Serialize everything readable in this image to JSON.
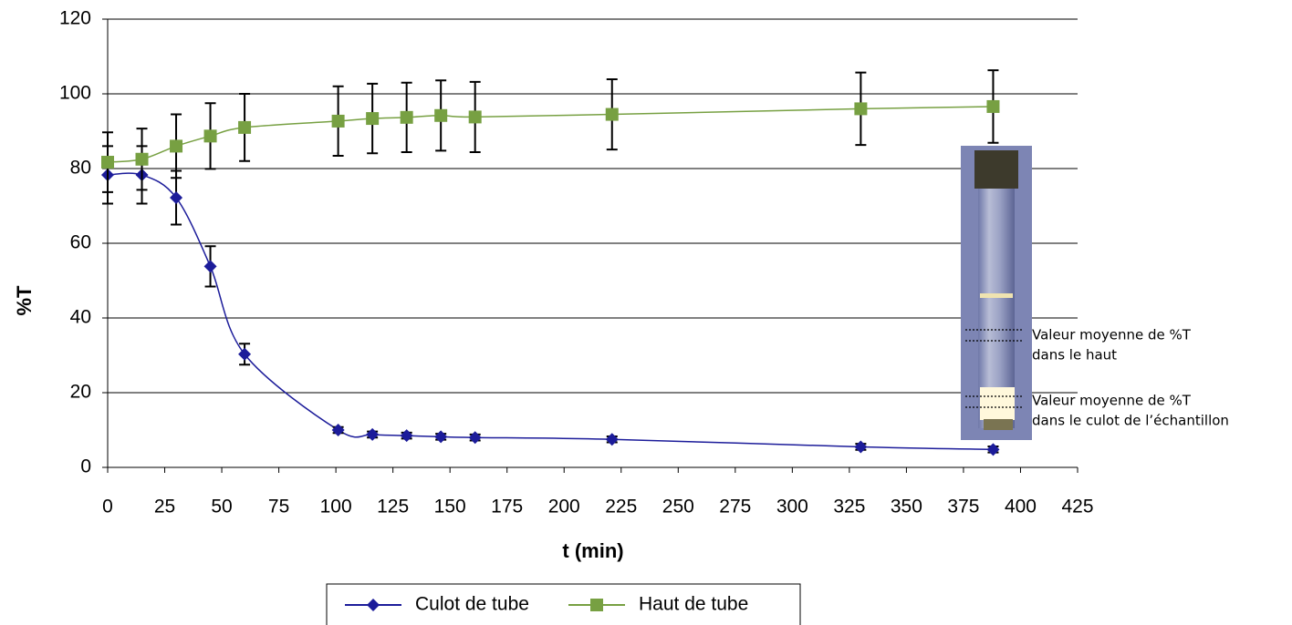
{
  "chart_data": {
    "type": "line",
    "y_label": "%T",
    "x_label": "t (min)",
    "xlim": [
      0,
      425
    ],
    "xticks": [
      0,
      25,
      50,
      75,
      100,
      125,
      150,
      175,
      200,
      225,
      250,
      275,
      300,
      325,
      350,
      375,
      400,
      425
    ],
    "ylim": [
      0,
      120
    ],
    "yticks": [
      0,
      20,
      40,
      60,
      80,
      100,
      120
    ],
    "grid": true,
    "legend": "bottom",
    "series": [
      {
        "name": "Culot de tube",
        "color": "#1c1c9a",
        "marker": "diamond",
        "x": [
          0,
          15,
          30,
          45,
          60,
          101,
          116,
          131,
          146,
          161,
          221,
          330,
          388
        ],
        "values": [
          78.3,
          78.3,
          72.2,
          53.8,
          30.3,
          10,
          8.8,
          8.5,
          8.2,
          8,
          7.5,
          5.5,
          4.8
        ],
        "errors": [
          7.7,
          7.7,
          7.2,
          5.4,
          2.8,
          0.8,
          0.8,
          0.8,
          0.8,
          0.8,
          0.8,
          0.8,
          0.8
        ]
      },
      {
        "name": "Haut de tube",
        "color": "#77a042",
        "marker": "square",
        "x": [
          0,
          15,
          30,
          45,
          60,
          101,
          116,
          131,
          146,
          161,
          221,
          330,
          388
        ],
        "values": [
          81.7,
          82.5,
          86,
          88.7,
          91,
          92.7,
          93.4,
          93.7,
          94.2,
          93.8,
          94.5,
          96,
          96.6
        ],
        "errors": [
          8,
          8.2,
          8.5,
          8.8,
          9,
          9.3,
          9.3,
          9.3,
          9.4,
          9.4,
          9.4,
          9.7,
          9.7
        ]
      }
    ],
    "annotations": [
      {
        "lines": [
          "Valeur moyenne de %T",
          "dans le haut"
        ]
      },
      {
        "lines": [
          "Valeur moyenne de %T",
          "dans le culot de l’échantillon"
        ]
      }
    ]
  }
}
